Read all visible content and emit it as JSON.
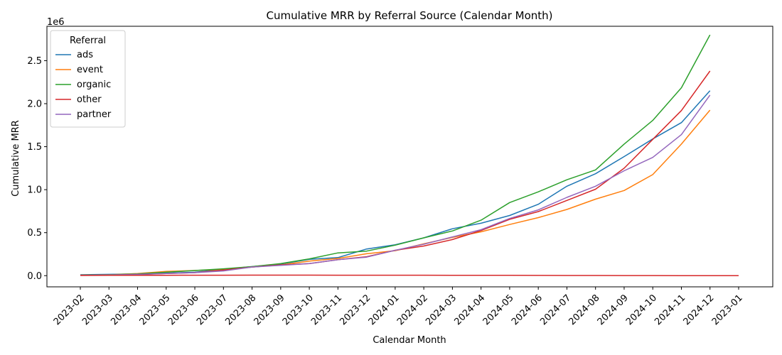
{
  "chart_data": {
    "type": "line",
    "title": "Cumulative MRR by Referral Source (Calendar Month)",
    "xlabel": "Calendar Month",
    "ylabel": "Cumulative MRR",
    "y_scale_label": "1e6",
    "ylim": [
      -0.13,
      2.9
    ],
    "y_ticks": [
      0.0,
      0.5,
      1.0,
      1.5,
      2.0,
      2.5
    ],
    "y_tick_labels": [
      "0.0",
      "0.5",
      "1.0",
      "1.5",
      "2.0",
      "2.5"
    ],
    "categories": [
      "2023-02",
      "2023-03",
      "2023-04",
      "2023-05",
      "2023-06",
      "2023-07",
      "2023-08",
      "2023-09",
      "2023-10",
      "2023-11",
      "2023-12",
      "2024-01",
      "2024-02",
      "2024-03",
      "2024-04",
      "2024-05",
      "2024-06",
      "2024-07",
      "2024-08",
      "2024-09",
      "2024-10",
      "2024-11",
      "2024-12",
      "2023-01"
    ],
    "grid": false,
    "legend": {
      "title": "Referral",
      "position": "upper-left"
    },
    "series": [
      {
        "name": "ads",
        "color": "#1f77b4",
        "values": [
          0.01,
          0.015,
          0.02,
          0.03,
          0.04,
          0.075,
          0.105,
          0.135,
          0.19,
          0.21,
          0.31,
          0.36,
          0.44,
          0.545,
          0.61,
          0.7,
          0.83,
          1.04,
          1.185,
          1.385,
          1.59,
          1.78,
          2.15,
          null
        ]
      },
      {
        "name": "event",
        "color": "#ff7f0e",
        "values": [
          0.005,
          0.01,
          0.025,
          0.05,
          0.06,
          0.075,
          0.1,
          0.125,
          0.17,
          0.2,
          0.255,
          0.29,
          0.37,
          0.445,
          0.51,
          0.595,
          0.675,
          0.77,
          0.89,
          0.99,
          1.175,
          1.53,
          1.925,
          null
        ]
      },
      {
        "name": "organic",
        "color": "#2ca02c",
        "values": [
          0.005,
          0.01,
          0.02,
          0.04,
          0.06,
          0.08,
          0.105,
          0.14,
          0.195,
          0.265,
          0.285,
          0.355,
          0.44,
          0.52,
          0.645,
          0.85,
          0.975,
          1.115,
          1.23,
          1.53,
          1.805,
          2.185,
          2.8,
          null
        ]
      },
      {
        "name": "other",
        "color": "#d62728",
        "values": [
          0.003,
          0.006,
          0.012,
          0.025,
          0.035,
          0.065,
          0.1,
          0.125,
          0.14,
          0.185,
          0.22,
          0.295,
          0.345,
          0.42,
          0.525,
          0.655,
          0.745,
          0.875,
          1.005,
          1.25,
          1.585,
          1.92,
          2.38,
          null
        ]
      },
      {
        "name": "partner",
        "color": "#9467bd",
        "values": [
          0.004,
          0.008,
          0.015,
          0.025,
          0.035,
          0.055,
          0.1,
          0.12,
          0.14,
          0.185,
          0.215,
          0.295,
          0.365,
          0.45,
          0.535,
          0.665,
          0.765,
          0.91,
          1.04,
          1.22,
          1.375,
          1.64,
          2.1,
          null
        ]
      },
      {
        "color": "#8c564b",
        "values": [
          null,
          null,
          null,
          null,
          null,
          null,
          null,
          null,
          null,
          null,
          null,
          null,
          null,
          null,
          null,
          null,
          null,
          null,
          null,
          null,
          null,
          null,
          null,
          null
        ]
      },
      {
        "color": "#d62728",
        "values": [
          0.003,
          0.0035,
          0.004,
          0.0045,
          0.005,
          0.0055,
          0.006,
          0.006,
          0.006,
          0.0055,
          0.0055,
          0.005,
          0.005,
          0.0045,
          0.004,
          0.0035,
          0.003,
          0.0025,
          0.002,
          0.0015,
          0.0012,
          0.0008,
          0.0004,
          0.0
        ]
      }
    ]
  }
}
